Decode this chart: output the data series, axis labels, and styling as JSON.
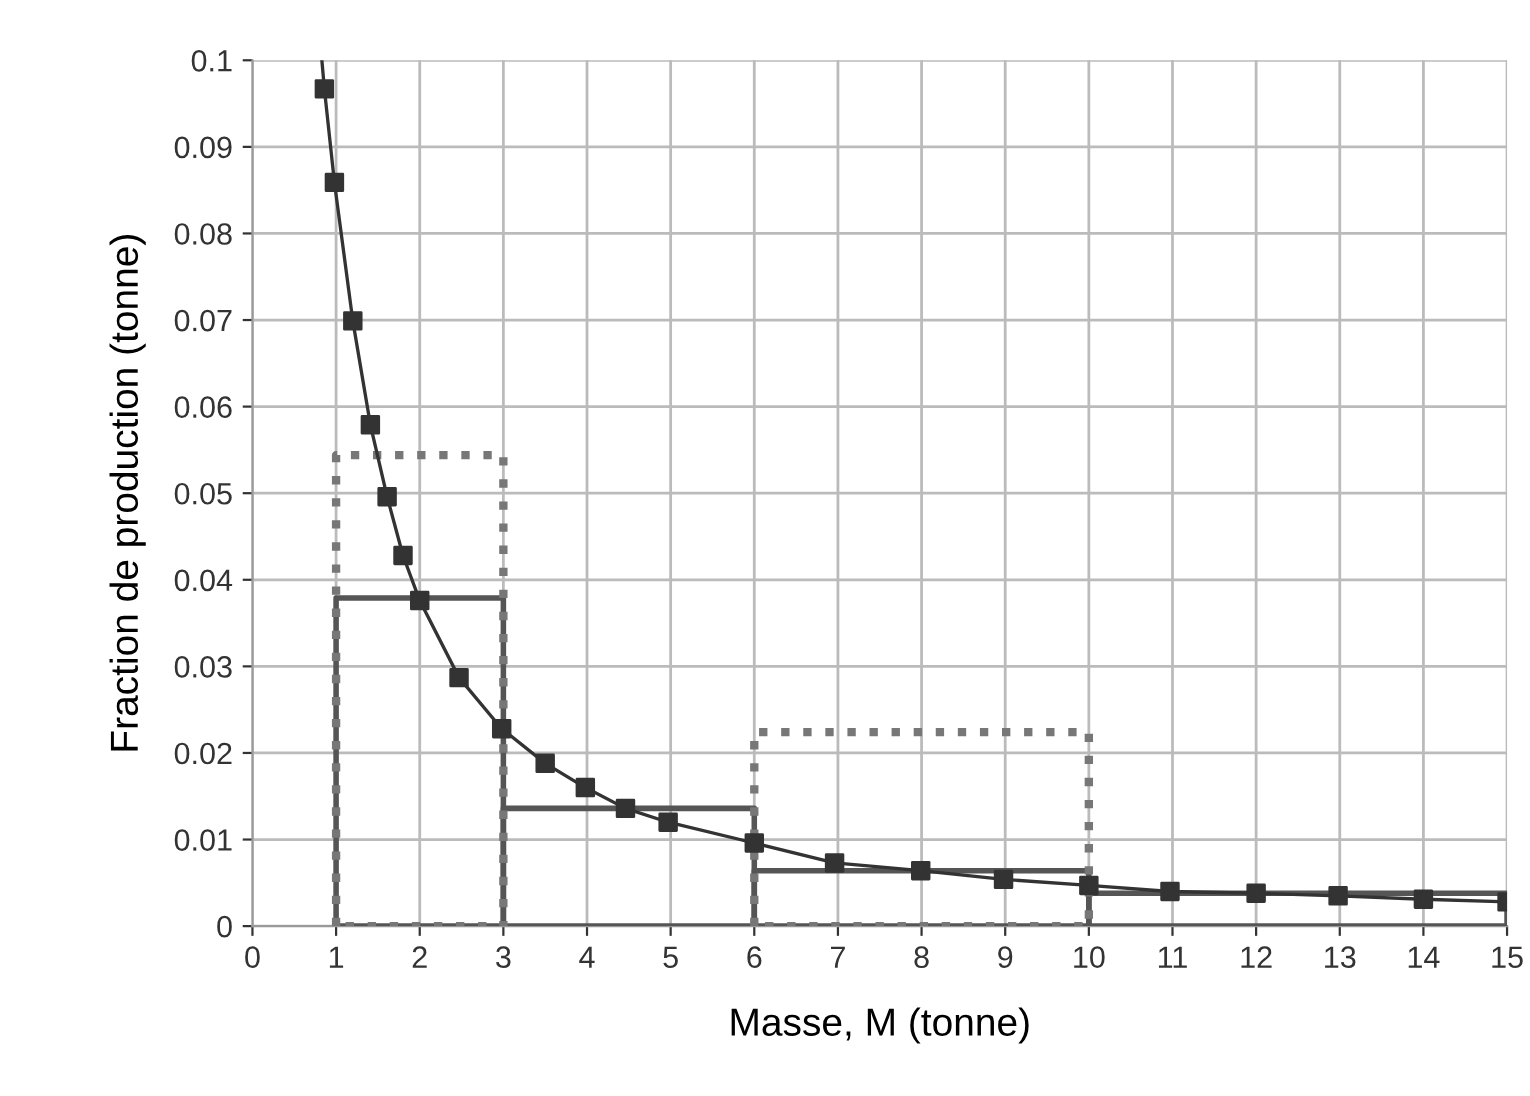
{
  "chart_data": {
    "type": "scatter",
    "xlabel": "Masse, M (tonne)",
    "ylabel": "Fraction de production (tonne)",
    "xlim": [
      0,
      15
    ],
    "xticks": [
      0,
      1,
      2,
      3,
      4,
      5,
      6,
      7,
      8,
      9,
      10,
      11,
      12,
      13,
      14,
      15
    ],
    "ylim": [
      0,
      0.1
    ],
    "yticks": [
      0,
      0.01,
      0.02,
      0.03,
      0.04,
      0.05,
      0.06,
      0.07,
      0.08,
      0.09,
      0.1
    ],
    "grid": true,
    "legend": false,
    "series": [
      {
        "type": "histogram",
        "color": "#555555",
        "line_style": "solid",
        "bins": [
          1,
          3,
          6,
          10,
          15
        ],
        "values": [
          0.0379,
          0.0136,
          0.0064,
          0.0038
        ]
      },
      {
        "type": "histogram",
        "color": "#777777",
        "line_style": "dotted",
        "bins": [
          1,
          3,
          6,
          10
        ],
        "values": [
          0.0544,
          null,
          0.0224
        ]
      },
      {
        "type": "line",
        "color": "#333333",
        "marker": "none",
        "line_style": "solid",
        "x": [
          0.83,
          0.86,
          0.98,
          1.2,
          1.41,
          1.61,
          1.8,
          2.0,
          2.47,
          2.98,
          3.5,
          3.98,
          4.46,
          4.97,
          6.0,
          6.96,
          7.99,
          8.98,
          10.0,
          10.97,
          12.0,
          12.98,
          14.0,
          15.0
        ],
        "values": [
          0.1,
          0.0967,
          0.0859,
          0.0699,
          0.0579,
          0.0496,
          0.0428,
          0.0376,
          0.0287,
          0.0228,
          0.0188,
          0.016,
          0.0136,
          0.012,
          0.0096,
          0.0073,
          0.0064,
          0.0054,
          0.0047,
          0.004,
          0.0038,
          0.0035,
          0.0031,
          0.0028
        ]
      },
      {
        "color": "#333333",
        "marker": "square",
        "x": [
          0.86,
          0.98,
          1.2,
          1.41,
          1.61,
          1.8,
          2.0,
          2.47,
          2.98,
          3.5,
          3.98,
          4.46,
          4.97,
          6.0,
          6.96,
          7.99,
          8.98,
          10.0,
          10.97,
          12.0,
          12.98,
          14.0,
          15.0
        ],
        "values": [
          0.0967,
          0.0859,
          0.0699,
          0.0579,
          0.0496,
          0.0428,
          0.0376,
          0.0287,
          0.0228,
          0.0188,
          0.016,
          0.0136,
          0.012,
          0.0096,
          0.0073,
          0.0064,
          0.0054,
          0.0047,
          0.004,
          0.0038,
          0.0035,
          0.0031,
          0.0028
        ]
      }
    ]
  }
}
